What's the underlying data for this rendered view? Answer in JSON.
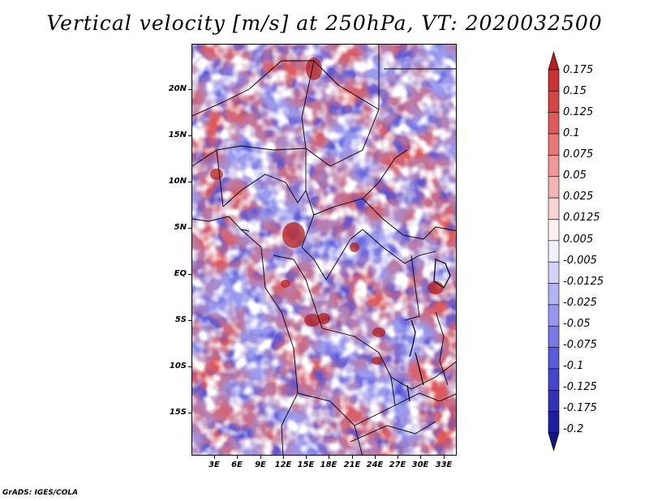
{
  "title": "Vertical velocity [m/s] at 250hPa, VT: 2020032500",
  "footer": "GrADS: IGES/COLA",
  "lat_labels": [
    "20N",
    "15N",
    "10N",
    "5N",
    "EQ",
    "5S",
    "10S",
    "15S"
  ],
  "lon_labels": [
    "3E",
    "6E",
    "9E",
    "12E",
    "15E",
    "18E",
    "21E",
    "24E",
    "27E",
    "30E",
    "33E"
  ],
  "colorbar": {
    "labels": [
      "0.175",
      "0.15",
      "0.125",
      "0.1",
      "0.075",
      "0.05",
      "0.025",
      "0.0125",
      "0.005",
      "-0.005",
      "-0.0125",
      "-0.025",
      "-0.05",
      "-0.075",
      "-0.1",
      "-0.125",
      "-0.175",
      "-0.2"
    ],
    "colors": [
      "#b41e1e",
      "#c83232",
      "#d74646",
      "#e05a5a",
      "#e87878",
      "#f09696",
      "#f5b4b4",
      "#fad2d2",
      "#fff0f0",
      "#f0f0ff",
      "#d2d2fa",
      "#b4b4f5",
      "#9696f0",
      "#7878e6",
      "#5a5adc",
      "#4646cd",
      "#3232b9",
      "#1e1ea0",
      "#14148c"
    ]
  },
  "colors": {
    "positive": "#c83232",
    "negative": "#3232b9",
    "border": "#000000"
  }
}
